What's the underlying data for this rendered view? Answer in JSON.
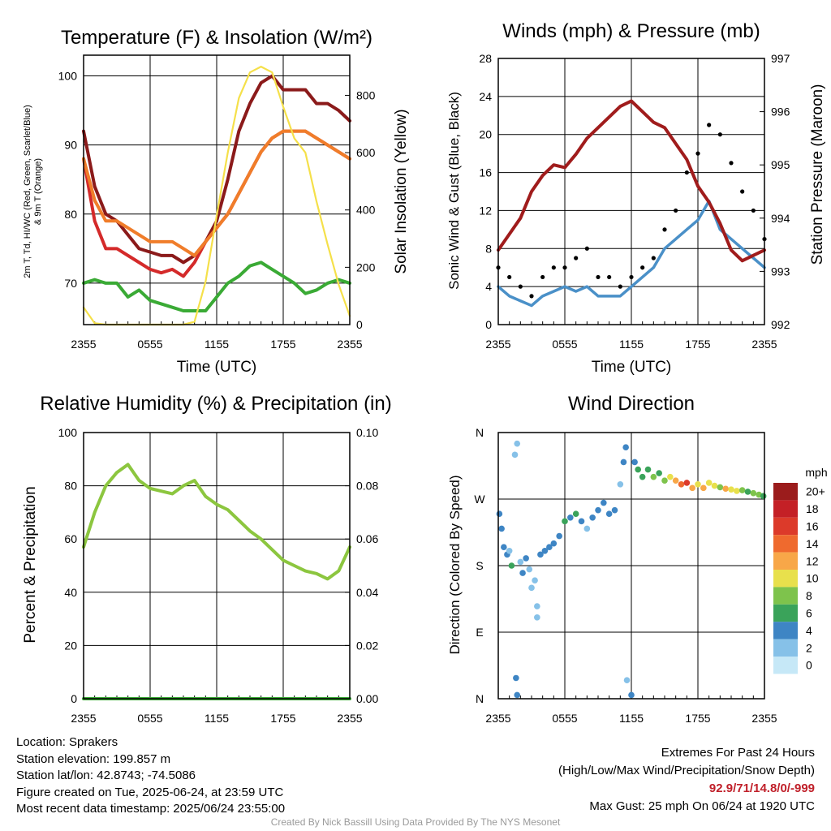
{
  "panels": {
    "temp": {
      "title": "Temperature (F) & Insolation (W/m²)",
      "xlabel": "Time (UTC)",
      "ylabel_line1": "2m T, Td, HI/WC (Red, Green, Scarlet/Blue)",
      "ylabel_line2": "& 9m T (Orange)",
      "ylabel_right": "Solar Insolation (Yellow)"
    },
    "wind": {
      "title": "Winds (mph) & Pressure (mb)",
      "xlabel": "Time (UTC)",
      "ylabel": "Sonic Wind & Gust (Blue, Black)",
      "ylabel_right": "Station Pressure (Maroon)"
    },
    "rh": {
      "title": "Relative Humidity (%) & Precipitation (in)",
      "ylabel": "Percent & Precipitation"
    },
    "dir": {
      "title": "Wind Direction",
      "ylabel": "Direction (Colored By Speed)",
      "legend_title": "mph"
    }
  },
  "footer": {
    "location": "Location: Sprakers",
    "elevation": "Station elevation: 199.857 m",
    "latlon": "Station lat/lon: 42.8743; -74.5086",
    "created": "Figure created on Tue, 2025-06-24, at 23:59 UTC",
    "recent": "Most recent data timestamp: 2025/06/24 23:55:00",
    "extremes_title": "Extremes For Past 24 Hours",
    "extremes_sub": "(High/Low/Max Wind/Precipitation/Snow Depth)",
    "extremes_values": "92.9/71/14.8/0/-999",
    "max_gust": "Max Gust: 25 mph On 06/24 at 1920 UTC",
    "credit": "Created By Nick Bassill Using Data Provided By The NYS Mesonet"
  },
  "chart_data": [
    {
      "type": "line",
      "title": "Temperature (F) & Insolation (W/m²)",
      "xlabel": "Time (UTC)",
      "xticks": [
        "2355",
        "0555",
        "1155",
        "1755",
        "2355"
      ],
      "x": [
        0,
        1,
        2,
        3,
        4,
        5,
        6,
        7,
        8,
        9,
        10,
        11,
        12,
        13,
        14,
        15,
        16,
        17,
        18,
        19,
        20,
        21,
        22,
        23,
        24
      ],
      "x_units": "hours since 2355 UTC",
      "xlim": [
        0,
        24
      ],
      "ylim": [
        64,
        103
      ],
      "yticks": [
        70,
        80,
        90,
        100
      ],
      "y2lim": [
        0,
        940
      ],
      "y2ticks": [
        0,
        200,
        400,
        600,
        800
      ],
      "series": [
        {
          "color": "#8b1a1a",
          "axis": "left",
          "values": [
            92,
            84,
            80,
            79,
            77,
            75,
            74.5,
            74,
            74,
            73,
            74,
            76,
            79,
            85,
            92,
            96,
            99,
            100,
            98,
            98,
            98,
            96,
            96,
            95,
            93.5
          ]
        },
        {
          "color": "#d42a2a",
          "axis": "left",
          "values": [
            88,
            79,
            75,
            75,
            74,
            73,
            72,
            71.5,
            72,
            71,
            73,
            76,
            78,
            80,
            83,
            86,
            89,
            91,
            92,
            92,
            92,
            91,
            90,
            89,
            88
          ]
        },
        {
          "color": "#f07d2a",
          "axis": "left",
          "values": [
            88,
            82,
            79,
            79,
            78,
            77,
            76,
            76,
            76,
            75,
            74,
            76,
            78,
            80,
            83,
            86,
            89,
            91,
            92,
            92,
            92,
            91,
            90,
            89,
            88
          ]
        },
        {
          "color": "#3aaa35",
          "axis": "left",
          "values": [
            70,
            70.5,
            70,
            70,
            68,
            69,
            67.5,
            67,
            66.5,
            66,
            66,
            66,
            68,
            70,
            71,
            72.5,
            73,
            72,
            71,
            70,
            68.5,
            69,
            70,
            70.5,
            70
          ]
        },
        {
          "color": "#f5e04a",
          "axis": "right",
          "values": [
            60,
            5,
            0,
            0,
            0,
            0,
            0,
            0,
            0,
            0,
            10,
            150,
            380,
            600,
            790,
            880,
            900,
            880,
            760,
            650,
            600,
            430,
            280,
            140,
            30
          ]
        }
      ]
    },
    {
      "type": "line",
      "title": "Winds (mph) & Pressure (mb)",
      "xlabel": "Time (UTC)",
      "xticks": [
        "2355",
        "0555",
        "1155",
        "1755",
        "2355"
      ],
      "x": [
        0,
        1,
        2,
        3,
        4,
        5,
        6,
        7,
        8,
        9,
        10,
        11,
        12,
        13,
        14,
        15,
        16,
        17,
        18,
        19,
        20,
        21,
        22,
        23,
        24
      ],
      "x_units": "hours since 2355 UTC",
      "xlim": [
        0,
        24
      ],
      "ylim": [
        0,
        28
      ],
      "yticks": [
        0,
        4,
        8,
        12,
        16,
        20,
        24,
        28
      ],
      "y2lim": [
        992,
        997
      ],
      "y2ticks": [
        992,
        993,
        994,
        995,
        996,
        997
      ],
      "series": [
        {
          "color": "#4a90c8",
          "axis": "left",
          "values": [
            4,
            3,
            2.5,
            2,
            3,
            3.5,
            4,
            3.5,
            4,
            3,
            3,
            3,
            4,
            5,
            6,
            8,
            9,
            10,
            11,
            13,
            10,
            9,
            8,
            7,
            6
          ]
        },
        {
          "color": "#000000",
          "axis": "left",
          "style": "points",
          "values": [
            6,
            5,
            4,
            3,
            5,
            6,
            6,
            7,
            8,
            5,
            5,
            4,
            5,
            6,
            7,
            10,
            12,
            16,
            18,
            21,
            20,
            17,
            14,
            12,
            9
          ]
        },
        {
          "color": "#a01c1c",
          "axis": "right",
          "values": [
            993.4,
            993.7,
            994.0,
            994.5,
            994.8,
            995.0,
            994.95,
            995.2,
            995.5,
            995.7,
            995.9,
            996.1,
            996.2,
            996.0,
            995.8,
            995.7,
            995.4,
            995.1,
            994.6,
            994.3,
            993.9,
            993.4,
            993.2,
            993.3,
            993.4
          ]
        }
      ]
    },
    {
      "type": "line",
      "title": "Relative Humidity (%) & Precipitation (in)",
      "xticks": [
        "2355",
        "0555",
        "1155",
        "1755",
        "2355"
      ],
      "x": [
        0,
        1,
        2,
        3,
        4,
        5,
        6,
        7,
        8,
        9,
        10,
        11,
        12,
        13,
        14,
        15,
        16,
        17,
        18,
        19,
        20,
        21,
        22,
        23,
        24
      ],
      "x_units": "hours since 2355 UTC",
      "xlim": [
        0,
        24
      ],
      "ylim": [
        0,
        100
      ],
      "yticks": [
        0,
        20,
        40,
        60,
        80,
        100
      ],
      "y2lim": [
        0,
        0.1
      ],
      "y2ticks": [
        "0.00",
        "0.02",
        "0.04",
        "0.06",
        "0.08",
        "0.10"
      ],
      "series": [
        {
          "color": "#8cc63f",
          "axis": "left",
          "values": [
            57,
            70,
            80,
            85,
            88,
            82,
            79,
            78,
            77,
            80,
            82,
            76,
            73,
            71,
            67,
            63,
            60,
            56,
            52,
            50,
            48,
            47,
            45,
            48,
            57
          ]
        },
        {
          "color": "#3aaa35",
          "axis": "right",
          "values": [
            0,
            0,
            0,
            0,
            0,
            0,
            0,
            0,
            0,
            0,
            0,
            0,
            0,
            0,
            0,
            0,
            0,
            0,
            0,
            0,
            0,
            0,
            0,
            0,
            0
          ]
        }
      ]
    },
    {
      "type": "scatter",
      "title": "Wind Direction",
      "xticks": [
        "2355",
        "0555",
        "1155",
        "1755",
        "2355"
      ],
      "xlim": [
        0,
        24
      ],
      "ylim": [
        0,
        360
      ],
      "yticks": [
        "N",
        "E",
        "S",
        "W",
        "N"
      ],
      "y_units": "degrees",
      "color_scale": {
        "title": "mph",
        "labels": [
          "20+",
          "18",
          "16",
          "14",
          "12",
          "10",
          "8",
          "6",
          "4",
          "2",
          "0"
        ],
        "colors": [
          "#9b1c1c",
          "#c42026",
          "#dc3a2a",
          "#ef6a2e",
          "#f8a748",
          "#e8e04c",
          "#7ec34c",
          "#3aa35a",
          "#3e85c4",
          "#86c1e8",
          "#c6e8f7"
        ]
      },
      "points": [
        {
          "x": 0.1,
          "y": 250,
          "speed": 3
        },
        {
          "x": 0.3,
          "y": 230,
          "speed": 4
        },
        {
          "x": 0.5,
          "y": 205,
          "speed": 3
        },
        {
          "x": 0.8,
          "y": 195,
          "speed": 4
        },
        {
          "x": 1.0,
          "y": 200,
          "speed": 2
        },
        {
          "x": 1.2,
          "y": 180,
          "speed": 5
        },
        {
          "x": 1.5,
          "y": 330,
          "speed": 1
        },
        {
          "x": 1.7,
          "y": 345,
          "speed": 1
        },
        {
          "x": 1.6,
          "y": 28,
          "speed": 3
        },
        {
          "x": 1.7,
          "y": 5,
          "speed": 3
        },
        {
          "x": 2.0,
          "y": 185,
          "speed": 2
        },
        {
          "x": 2.2,
          "y": 170,
          "speed": 3
        },
        {
          "x": 2.5,
          "y": 190,
          "speed": 3
        },
        {
          "x": 2.8,
          "y": 175,
          "speed": 2
        },
        {
          "x": 3.0,
          "y": 150,
          "speed": 1
        },
        {
          "x": 3.3,
          "y": 160,
          "speed": 2
        },
        {
          "x": 3.5,
          "y": 125,
          "speed": 1
        },
        {
          "x": 3.5,
          "y": 110,
          "speed": 1
        },
        {
          "x": 3.8,
          "y": 195,
          "speed": 4
        },
        {
          "x": 4.2,
          "y": 200,
          "speed": 4
        },
        {
          "x": 4.6,
          "y": 205,
          "speed": 3
        },
        {
          "x": 5.0,
          "y": 210,
          "speed": 4
        },
        {
          "x": 5.5,
          "y": 220,
          "speed": 3
        },
        {
          "x": 6.0,
          "y": 240,
          "speed": 5
        },
        {
          "x": 6.5,
          "y": 245,
          "speed": 4
        },
        {
          "x": 7.0,
          "y": 250,
          "speed": 5
        },
        {
          "x": 7.5,
          "y": 240,
          "speed": 3
        },
        {
          "x": 8.0,
          "y": 230,
          "speed": 2
        },
        {
          "x": 8.5,
          "y": 245,
          "speed": 3
        },
        {
          "x": 9.0,
          "y": 255,
          "speed": 4
        },
        {
          "x": 9.5,
          "y": 265,
          "speed": 4
        },
        {
          "x": 10.0,
          "y": 250,
          "speed": 3
        },
        {
          "x": 10.5,
          "y": 255,
          "speed": 3
        },
        {
          "x": 11.0,
          "y": 290,
          "speed": 2
        },
        {
          "x": 11.3,
          "y": 320,
          "speed": 4
        },
        {
          "x": 11.5,
          "y": 340,
          "speed": 4
        },
        {
          "x": 11.6,
          "y": 25,
          "speed": 2
        },
        {
          "x": 12.0,
          "y": 5,
          "speed": 4
        },
        {
          "x": 12.3,
          "y": 320,
          "speed": 4
        },
        {
          "x": 12.6,
          "y": 310,
          "speed": 5
        },
        {
          "x": 13.0,
          "y": 300,
          "speed": 6
        },
        {
          "x": 13.5,
          "y": 310,
          "speed": 5
        },
        {
          "x": 14.0,
          "y": 300,
          "speed": 7
        },
        {
          "x": 14.5,
          "y": 305,
          "speed": 6
        },
        {
          "x": 15.0,
          "y": 295,
          "speed": 8
        },
        {
          "x": 15.5,
          "y": 300,
          "speed": 10
        },
        {
          "x": 16.0,
          "y": 295,
          "speed": 12
        },
        {
          "x": 16.5,
          "y": 290,
          "speed": 14
        },
        {
          "x": 17.0,
          "y": 292,
          "speed": 16
        },
        {
          "x": 17.5,
          "y": 285,
          "speed": 12
        },
        {
          "x": 18.0,
          "y": 290,
          "speed": 10
        },
        {
          "x": 18.5,
          "y": 285,
          "speed": 11
        },
        {
          "x": 19.0,
          "y": 292,
          "speed": 9
        },
        {
          "x": 19.5,
          "y": 288,
          "speed": 10
        },
        {
          "x": 20.0,
          "y": 286,
          "speed": 8
        },
        {
          "x": 20.5,
          "y": 284,
          "speed": 11
        },
        {
          "x": 21.0,
          "y": 283,
          "speed": 9
        },
        {
          "x": 21.5,
          "y": 281,
          "speed": 10
        },
        {
          "x": 22.0,
          "y": 282,
          "speed": 7
        },
        {
          "x": 22.5,
          "y": 280,
          "speed": 6
        },
        {
          "x": 23.0,
          "y": 278,
          "speed": 8
        },
        {
          "x": 23.5,
          "y": 276,
          "speed": 7
        },
        {
          "x": 23.9,
          "y": 274,
          "speed": 6
        }
      ]
    }
  ]
}
